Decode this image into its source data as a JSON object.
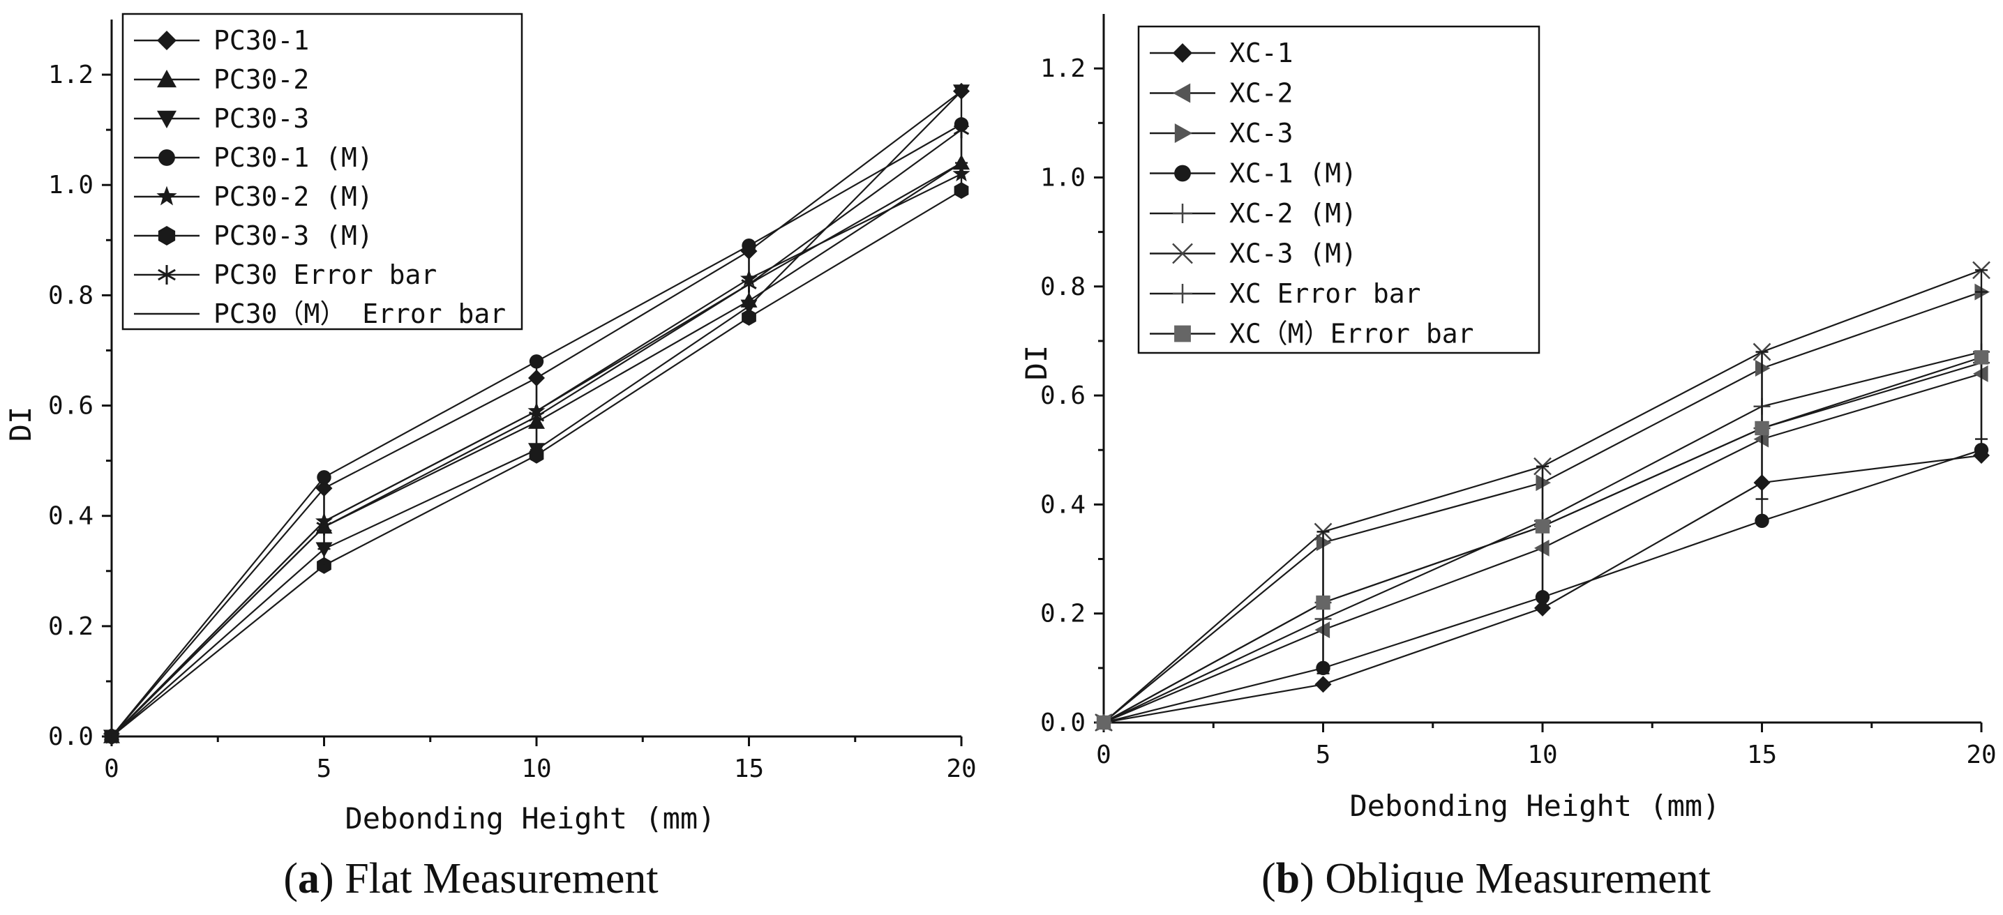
{
  "chart_data": [
    {
      "type": "line",
      "panel_id": "a",
      "caption_letter": "a",
      "caption_text": "Flat Measurement",
      "xlabel": "Debonding Height (mm)",
      "ylabel": "DI",
      "xlim": [
        0,
        20
      ],
      "ylim": [
        0,
        1.3
      ],
      "xticks": [
        0,
        5,
        10,
        15,
        20
      ],
      "xtick_labels": [
        "0",
        "5",
        "10",
        "15",
        "20"
      ],
      "yticks": [
        0,
        0.2,
        0.4,
        0.6,
        0.8,
        1.0,
        1.2
      ],
      "ytick_labels": [
        "0.0",
        "0.2",
        "0.4",
        "0.6",
        "0.8",
        "1.0",
        "1.2"
      ],
      "x": [
        0,
        5,
        10,
        15,
        20
      ],
      "series": [
        {
          "name": "PC30-1",
          "marker": "diamond",
          "values": [
            0,
            0.45,
            0.65,
            0.88,
            1.17
          ]
        },
        {
          "name": "PC30-2",
          "marker": "triangle-up",
          "values": [
            0,
            0.38,
            0.57,
            0.79,
            1.04
          ]
        },
        {
          "name": "PC30-3",
          "marker": "triangle-down",
          "values": [
            0,
            0.34,
            0.52,
            0.78,
            1.17
          ]
        },
        {
          "name": "PC30-1 (M)",
          "marker": "circle",
          "values": [
            0,
            0.47,
            0.68,
            0.89,
            1.11
          ]
        },
        {
          "name": "PC30-2 (M)",
          "marker": "star",
          "values": [
            0,
            0.39,
            0.59,
            0.83,
            1.02
          ]
        },
        {
          "name": "PC30-3 (M)",
          "marker": "hexagon",
          "values": [
            0,
            0.31,
            0.51,
            0.76,
            0.99
          ]
        },
        {
          "name": "PC30 Error bar",
          "marker": "asterisk",
          "values": [
            0,
            0.38,
            0.58,
            0.82,
            1.1
          ],
          "err_low": [
            0,
            0.04,
            0.06,
            0.04,
            0.06
          ],
          "err_high": [
            0,
            0.07,
            0.07,
            0.06,
            0.07
          ]
        },
        {
          "name": "PC30（M） Error bar",
          "marker": "none",
          "values": [
            0,
            0.39,
            0.59,
            0.82,
            1.04
          ],
          "err_low": [
            0,
            0.08,
            0.08,
            0.06,
            0.05
          ],
          "err_high": [
            0,
            0.08,
            0.09,
            0.07,
            0.07
          ]
        }
      ]
    },
    {
      "type": "line",
      "panel_id": "b",
      "caption_letter": "b",
      "caption_text": "Oblique Measurement",
      "xlabel": "Debonding Height (mm)",
      "ylabel": "DI",
      "xlim": [
        0,
        20
      ],
      "ylim": [
        0,
        1.3
      ],
      "xticks": [
        0,
        5,
        10,
        15,
        20
      ],
      "xtick_labels": [
        "0",
        "5",
        "10",
        "15",
        "20"
      ],
      "yticks": [
        0,
        0.2,
        0.4,
        0.6,
        0.8,
        1.0,
        1.2
      ],
      "ytick_labels": [
        "0.0",
        "0.2",
        "0.4",
        "0.6",
        "0.8",
        "1.0",
        "1.2"
      ],
      "x": [
        0,
        5,
        10,
        15,
        20
      ],
      "series": [
        {
          "name": "XC-1",
          "marker": "diamond",
          "values": [
            0,
            0.07,
            0.21,
            0.44,
            0.49
          ]
        },
        {
          "name": "XC-2",
          "marker": "triangle-left",
          "values": [
            0,
            0.17,
            0.32,
            0.52,
            0.64
          ]
        },
        {
          "name": "XC-3",
          "marker": "triangle-right",
          "values": [
            0,
            0.33,
            0.44,
            0.65,
            0.79
          ]
        },
        {
          "name": "XC-1 (M)",
          "marker": "circle",
          "values": [
            0,
            0.1,
            0.23,
            0.37,
            0.5
          ]
        },
        {
          "name": "XC-2 (M)",
          "marker": "plus",
          "values": [
            0,
            0.19,
            0.37,
            0.58,
            0.68
          ]
        },
        {
          "name": "XC-3 (M)",
          "marker": "cross",
          "values": [
            0,
            0.35,
            0.47,
            0.68,
            0.83
          ]
        },
        {
          "name": "XC Error bar",
          "marker": "plus",
          "values": [
            0,
            0.22,
            0.36,
            0.54,
            0.66
          ],
          "err_low": [
            0,
            0.13,
            0.13,
            0.13,
            0.14
          ],
          "err_high": [
            0,
            0.13,
            0.11,
            0.14,
            0.13
          ]
        },
        {
          "name": "XC（M）Error bar",
          "marker": "square",
          "values": [
            0,
            0.22,
            0.36,
            0.54,
            0.67
          ],
          "err_low": [
            0,
            0.12,
            0.13,
            0.17,
            0.17
          ],
          "err_high": [
            0,
            0.13,
            0.11,
            0.14,
            0.16
          ]
        }
      ]
    }
  ]
}
